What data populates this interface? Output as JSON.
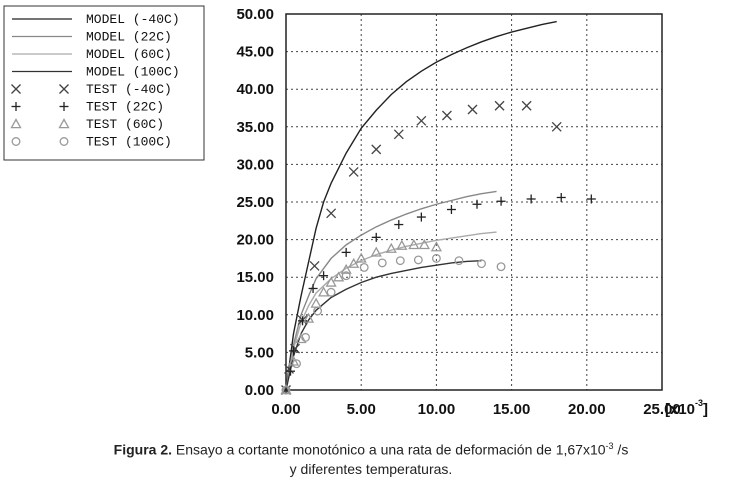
{
  "chart_data": {
    "type": "line",
    "xlabel_unit": "[x10",
    "xlabel_exp": "-3",
    "xlabel_tail": "]",
    "xlim": [
      0,
      25
    ],
    "ylim": [
      0,
      50
    ],
    "x_ticks": [
      "0.00",
      "5.00",
      "10.00",
      "15.00",
      "20.00",
      "25.00"
    ],
    "y_ticks": [
      "0.00",
      "5.00",
      "10.00",
      "15.00",
      "20.00",
      "25.00",
      "30.00",
      "35.00",
      "40.00",
      "45.00",
      "50.00"
    ],
    "grid": true,
    "legend_position": "top-left",
    "series": [
      {
        "name": "MODEL (-40C)",
        "kind": "line",
        "color": "#222222",
        "x": [
          0,
          0.5,
          1,
          1.5,
          2,
          2.5,
          3,
          4,
          5,
          6,
          7,
          8,
          9,
          10,
          11,
          12,
          13,
          14,
          15,
          16,
          17,
          18
        ],
        "y": [
          0,
          7.5,
          12.5,
          17,
          21.5,
          25,
          27.5,
          31.5,
          34.8,
          37.2,
          39.3,
          41,
          42.4,
          43.6,
          44.6,
          45.5,
          46.3,
          47,
          47.6,
          48.1,
          48.6,
          49
        ]
      },
      {
        "name": "MODEL (22C)",
        "kind": "line",
        "color": "#888888",
        "x": [
          0,
          0.5,
          1,
          1.5,
          2,
          3,
          4,
          5,
          6,
          7,
          8,
          9,
          10,
          11,
          12,
          13,
          14
        ],
        "y": [
          0,
          6,
          10,
          12.5,
          14.8,
          17.5,
          19.3,
          20.6,
          21.7,
          22.6,
          23.4,
          24.1,
          24.7,
          25.2,
          25.7,
          26.1,
          26.4
        ]
      },
      {
        "name": "MODEL (60C)",
        "kind": "line",
        "color": "#aaaaaa",
        "x": [
          0,
          0.5,
          1,
          1.5,
          2,
          3,
          4,
          5,
          6,
          7,
          8,
          9,
          10,
          11,
          12,
          13,
          14
        ],
        "y": [
          0,
          5.5,
          9,
          11.2,
          12.9,
          14.8,
          16.2,
          17.2,
          18,
          18.6,
          19.1,
          19.5,
          19.9,
          20.2,
          20.5,
          20.8,
          21
        ]
      },
      {
        "name": "MODEL (100C)",
        "kind": "line",
        "color": "#333333",
        "x": [
          0,
          0.5,
          1,
          1.5,
          2,
          3,
          4,
          5,
          6,
          7,
          8,
          9,
          10,
          11,
          12,
          13
        ],
        "y": [
          0,
          4.5,
          7.5,
          9.3,
          10.6,
          12.3,
          13.4,
          14.3,
          15,
          15.5,
          15.9,
          16.3,
          16.6,
          16.9,
          17.1,
          17.2
        ]
      },
      {
        "name": "TEST (-40C)",
        "kind": "marker",
        "marker": "x",
        "color": "#444444",
        "x": [
          0,
          0.2,
          0.6,
          1.1,
          1.9,
          3,
          4.5,
          6,
          7.5,
          9,
          10.7,
          12.4,
          14.2,
          16,
          18
        ],
        "y": [
          0,
          2.8,
          5.5,
          9.3,
          16.5,
          23.5,
          29,
          32,
          34,
          35.8,
          36.5,
          37.3,
          37.8,
          37.8,
          35
        ]
      },
      {
        "name": "TEST (22C)",
        "kind": "marker",
        "marker": "+",
        "color": "#222222",
        "x": [
          0,
          0.3,
          0.5,
          1.1,
          1.8,
          2.5,
          4,
          6,
          7.5,
          9,
          11,
          12.7,
          14.3,
          16.3,
          18.3,
          20.3
        ],
        "y": [
          0,
          2.5,
          5.2,
          9.2,
          13.5,
          15.2,
          18.3,
          20.3,
          22,
          23,
          24,
          24.7,
          25.1,
          25.4,
          25.6,
          25.4
        ]
      },
      {
        "name": "TEST (60C)",
        "kind": "marker",
        "marker": "triangle",
        "color": "#999999",
        "x": [
          0,
          0.5,
          1,
          1.5,
          2,
          2.5,
          3,
          3.5,
          4,
          4.5,
          5,
          6,
          7,
          7.7,
          8.5,
          9.2,
          10
        ],
        "y": [
          0,
          3.8,
          6.8,
          9.5,
          11.5,
          13,
          14.3,
          15,
          16,
          16.8,
          17.5,
          18.3,
          18.8,
          19.2,
          19.3,
          19.3,
          19
        ]
      },
      {
        "name": "TEST (100C)",
        "kind": "marker",
        "marker": "circle",
        "color": "#999999",
        "x": [
          0,
          0.7,
          1.3,
          2.1,
          3,
          4,
          5.2,
          6.4,
          7.6,
          8.8,
          10,
          11.5,
          13,
          14.3
        ],
        "y": [
          0,
          3.5,
          7,
          10.5,
          13,
          15.2,
          16.3,
          16.9,
          17.2,
          17.3,
          17.5,
          17.2,
          16.8,
          16.4
        ]
      }
    ]
  },
  "caption": {
    "bold": "Figura 2.",
    "line1_pre": " Ensayo a cortante monotónico a una rata de deformación de 1,67x10",
    "line1_exp": "-3",
    "line1_post": " /s",
    "line2": "y diferentes temperaturas."
  }
}
